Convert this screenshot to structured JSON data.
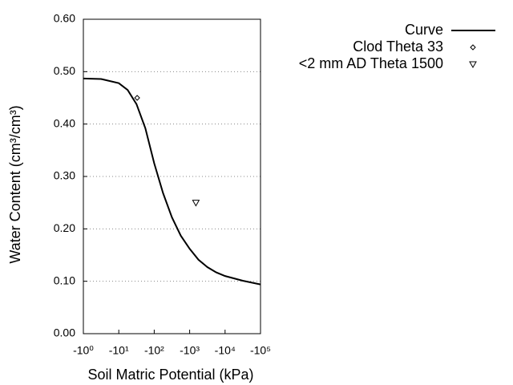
{
  "chart_data": {
    "type": "line",
    "xlabel": "Soil Matric Potential (kPa)",
    "ylabel": "Water Content (cm³/cm³)",
    "xscale": "log",
    "xlim": [
      1,
      100000
    ],
    "xticks": [
      {
        "value": 1,
        "label": "-10⁰"
      },
      {
        "value": 10,
        "label": "-10¹"
      },
      {
        "value": 100,
        "label": "-10²"
      },
      {
        "value": 1000,
        "label": "-10³"
      },
      {
        "value": 10000,
        "label": "-10⁴"
      },
      {
        "value": 100000,
        "label": "-10⁵"
      }
    ],
    "ylim": [
      0,
      0.6
    ],
    "yticks": [
      {
        "value": 0,
        "label": "0.00"
      },
      {
        "value": 0.1,
        "label": "0.10"
      },
      {
        "value": 0.2,
        "label": "0.20"
      },
      {
        "value": 0.3,
        "label": "0.30"
      },
      {
        "value": 0.4,
        "label": "0.40"
      },
      {
        "value": 0.5,
        "label": "0.50"
      },
      {
        "value": 0.6,
        "label": "0.60"
      }
    ],
    "grid": true,
    "legend": "top-right",
    "series": [
      {
        "name": "Curve",
        "color": "#000000",
        "marker": "none",
        "x": [
          1,
          3.16,
          10,
          17.8,
          31.6,
          56.2,
          100,
          178,
          316,
          562,
          1000,
          1780,
          3160,
          5620,
          10000,
          31600,
          100000
        ],
        "values": [
          0.487,
          0.486,
          0.478,
          0.465,
          0.438,
          0.392,
          0.325,
          0.268,
          0.222,
          0.187,
          0.162,
          0.141,
          0.127,
          0.117,
          0.11,
          0.101,
          0.094
        ]
      },
      {
        "name": "Clod Theta 33",
        "color": "#000000",
        "marker": "diamond",
        "x": [
          33
        ],
        "values": [
          0.45
        ]
      },
      {
        "name": "<2 mm AD Theta 1500",
        "color": "#000000",
        "marker": "triangle-down",
        "x": [
          1500
        ],
        "values": [
          0.25
        ]
      }
    ]
  }
}
